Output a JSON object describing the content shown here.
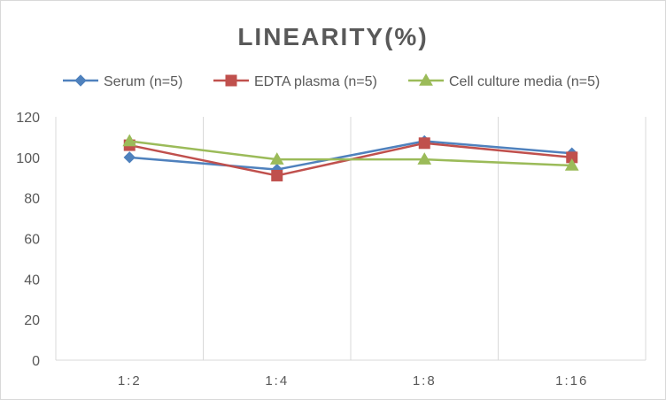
{
  "chart_data": {
    "type": "line",
    "title": "LINEARITY(%)",
    "xlabel": "",
    "ylabel": "",
    "categories": [
      "1:2",
      "1:4",
      "1:8",
      "1:16"
    ],
    "ylim": [
      0,
      120
    ],
    "yticks": [
      0,
      20,
      40,
      60,
      80,
      100,
      120
    ],
    "grid": "vertical",
    "legend": "top",
    "series": [
      {
        "name": "Serum (n=5)",
        "values": [
          100,
          94,
          108,
          102
        ],
        "color": "#4f81bd",
        "marker": "diamond"
      },
      {
        "name": "EDTA plasma (n=5)",
        "values": [
          106,
          91,
          107,
          100
        ],
        "color": "#c0504d",
        "marker": "square"
      },
      {
        "name": "Cell culture media (n=5)",
        "values": [
          108,
          99,
          99,
          96
        ],
        "color": "#9bbb59",
        "marker": "triangle"
      }
    ]
  }
}
